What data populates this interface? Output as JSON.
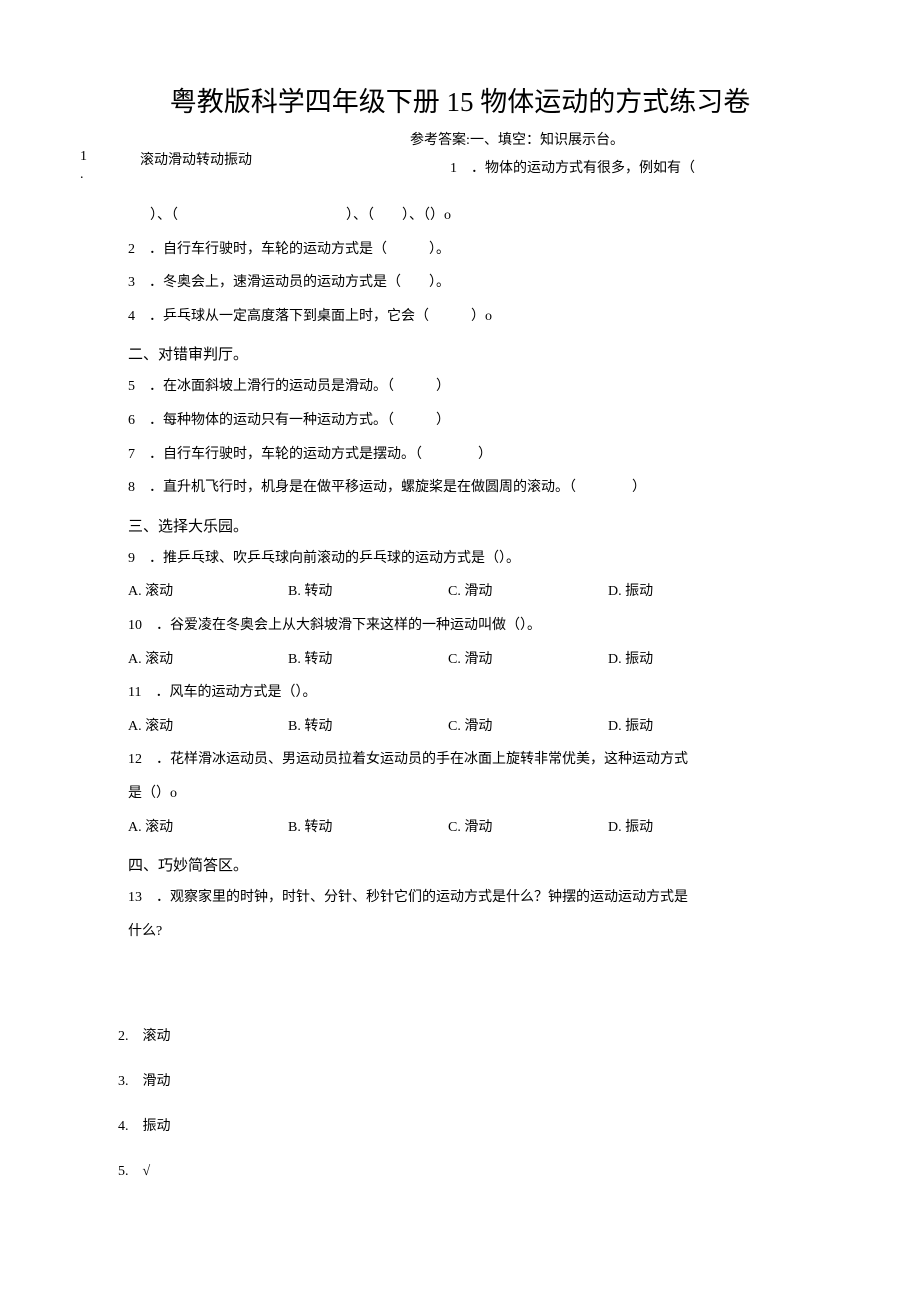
{
  "title": "粤教版科学四年级下册 15 物体运动的方式练习卷",
  "ref_label": "参考答案:",
  "section1": {
    "header": "一、填空：知识展示台。",
    "q1_left_num": "1",
    "q1_left_dot": ".",
    "q1_ans": "滚动滑动转动振动",
    "q1_line1": "1　．物体的运动方式有很多，例如有（",
    "q1_line2": "）、（　　　　　　　　　　　　）、（　　）、（）o",
    "q2": "2　．自行车行驶时，车轮的运动方式是（　　　）。",
    "q3": "3　．冬奥会上，速滑运动员的运动方式是（　　）。",
    "q4": "4　．乒乓球从一定高度落下到桌面上时，它会（　　　）o"
  },
  "section2": {
    "header": "二、对错审判厅。",
    "q5": "5　．在冰面斜坡上滑行的运动员是滑动。（　　　）",
    "q6": "6　．每种物体的运动只有一种运动方式。（　　　）",
    "q7": "7　．自行车行驶时，车轮的运动方式是摆动。（　　　　）",
    "q8": "8　．直升机飞行时，机身是在做平移运动，螺旋桨是在做圆周的滚动。（　　　　）"
  },
  "section3": {
    "header": "三、选择大乐园。",
    "q9": "9　．推乒乓球、吹乒乓球向前滚动的乒乓球的运动方式是（）。",
    "q10": "10　．谷爱凌在冬奥会上从大斜坡滑下来这样的一种运动叫做（）。",
    "q11": "11　．风车的运动方式是（）。",
    "q12_line1": "12　．花样滑冰运动员、男运动员拉着女运动员的手在冰面上旋转非常优美，这种运动方式",
    "q12_line2": "是（）o",
    "options": {
      "a": "A. 滚动",
      "b": "B. 转动",
      "c": "C. 滑动",
      "d": "D. 振动"
    }
  },
  "section4": {
    "header": "四、巧妙简答区。",
    "q13_line1": "13　．观察家里的时钟，时针、分针、秒针它们的运动方式是什么？钟摆的运动运动方式是",
    "q13_line2": "什么?"
  },
  "answers": {
    "a2": "2.　滚动",
    "a3": "3.　滑动",
    "a4": "4.　振动",
    "a5": "5.　√"
  }
}
